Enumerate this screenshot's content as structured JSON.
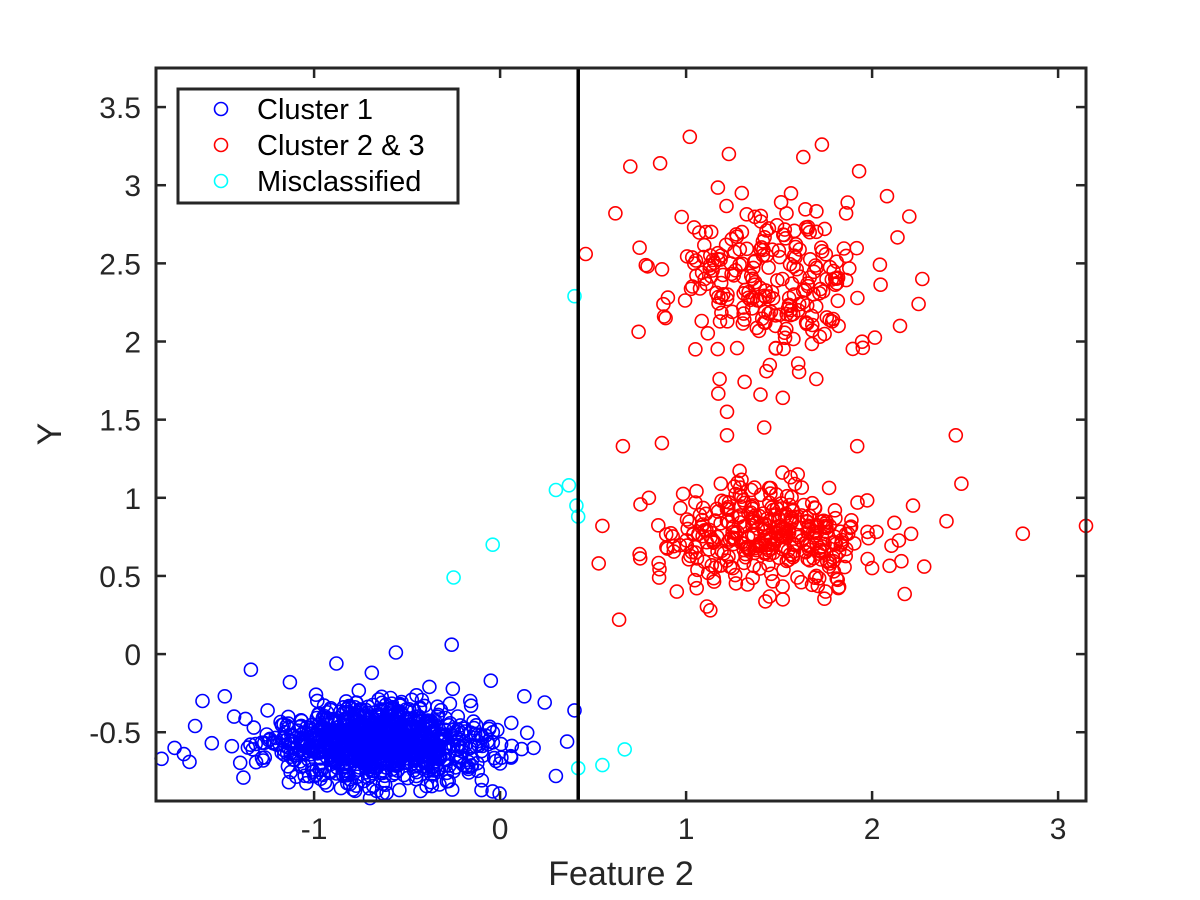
{
  "chart_data": {
    "type": "scatter",
    "title": "",
    "xlabel": "Feature 2",
    "ylabel": "Y",
    "xlim": [
      -1.85,
      3.15
    ],
    "ylim": [
      -0.94,
      3.75
    ],
    "x_ticks": [
      -1,
      0,
      1,
      2,
      3
    ],
    "y_ticks": [
      -0.5,
      0,
      0.5,
      1,
      1.5,
      2,
      2.5,
      3,
      3.5
    ],
    "x_tick_labels": [
      "-1",
      "0",
      "1",
      "2",
      "3"
    ],
    "y_tick_labels": [
      "-0.5",
      "0",
      "0.5",
      "1",
      "1.5",
      "2",
      "2.5",
      "3",
      "3.5"
    ],
    "grid": false,
    "legend_position": "top-left",
    "decision_boundary_x": 0.42,
    "series": [
      {
        "name": "Cluster 1",
        "color": "#0000ff",
        "marker": "open-circle",
        "points": [
          [
            -1.82,
            -0.67
          ],
          [
            -1.75,
            -0.6
          ],
          [
            -1.7,
            -0.64
          ],
          [
            -1.67,
            -0.69
          ],
          [
            -1.64,
            -0.46
          ],
          [
            -1.6,
            -0.3
          ],
          [
            -1.55,
            -0.57
          ],
          [
            -1.48,
            -0.27
          ],
          [
            -1.43,
            -0.4
          ],
          [
            -1.38,
            -0.79
          ],
          [
            -1.34,
            -0.1
          ],
          [
            -1.25,
            -0.36
          ],
          [
            -1.2,
            -0.58
          ],
          [
            -1.13,
            -0.18
          ],
          [
            -1.07,
            -0.72
          ],
          [
            -0.99,
            -0.26
          ],
          [
            -0.93,
            -0.84
          ],
          [
            -0.88,
            -0.06
          ],
          [
            -0.81,
            -0.49
          ],
          [
            -0.75,
            -0.62
          ],
          [
            -0.69,
            -0.12
          ],
          [
            -0.63,
            -0.83
          ],
          [
            -0.56,
            0.01
          ],
          [
            -0.5,
            -0.41
          ],
          [
            -0.45,
            -0.78
          ],
          [
            -0.38,
            -0.21
          ],
          [
            -0.31,
            -0.55
          ],
          [
            -0.26,
            0.06
          ],
          [
            -0.21,
            -0.66
          ],
          [
            -0.16,
            -0.3
          ],
          [
            -0.1,
            -0.87
          ],
          [
            -0.05,
            -0.17
          ],
          [
            0.0,
            -0.7
          ],
          [
            0.06,
            -0.44
          ],
          [
            0.13,
            -0.27
          ],
          [
            0.18,
            -0.6
          ],
          [
            0.24,
            -0.31
          ],
          [
            0.3,
            -0.78
          ],
          [
            0.36,
            -0.56
          ],
          [
            0.4,
            -0.36
          ]
        ]
      },
      {
        "name": "Cluster 2 & 3",
        "color": "#ff0000",
        "marker": "open-circle",
        "points": [
          [
            0.46,
            2.56
          ],
          [
            0.62,
            2.82
          ],
          [
            0.7,
            3.12
          ],
          [
            0.86,
            3.14
          ],
          [
            1.02,
            3.31
          ],
          [
            1.13,
            2.55
          ],
          [
            1.23,
            3.2
          ],
          [
            1.35,
            2.42
          ],
          [
            1.48,
            2.1
          ],
          [
            1.63,
            3.18
          ],
          [
            1.73,
            3.26
          ],
          [
            1.86,
            2.82
          ],
          [
            1.93,
            3.09
          ],
          [
            2.08,
            2.93
          ],
          [
            2.2,
            2.8
          ],
          [
            2.25,
            2.24
          ],
          [
            2.27,
            2.4
          ],
          [
            0.75,
            2.6
          ],
          [
            0.89,
            2.15
          ],
          [
            1.05,
            1.95
          ],
          [
            1.18,
            1.76
          ],
          [
            1.3,
            2.7
          ],
          [
            1.45,
            1.85
          ],
          [
            1.58,
            2.3
          ],
          [
            1.7,
            1.76
          ],
          [
            1.82,
            2.1
          ],
          [
            1.95,
            1.96
          ],
          [
            2.15,
            2.1
          ],
          [
            1.1,
            2.4
          ],
          [
            1.4,
            1.66
          ],
          [
            1.52,
            1.64
          ],
          [
            1.22,
            1.55
          ],
          [
            0.53,
            0.58
          ],
          [
            0.55,
            0.82
          ],
          [
            0.64,
            0.22
          ],
          [
            0.66,
            1.33
          ],
          [
            0.75,
            0.64
          ],
          [
            0.87,
            1.35
          ],
          [
            0.95,
            0.4
          ],
          [
            1.05,
            0.97
          ],
          [
            1.13,
            0.28
          ],
          [
            1.22,
            1.4
          ],
          [
            1.32,
            0.62
          ],
          [
            1.42,
            1.45
          ],
          [
            1.52,
            0.35
          ],
          [
            1.6,
            1.15
          ],
          [
            1.7,
            0.5
          ],
          [
            1.8,
            0.92
          ],
          [
            1.92,
            1.33
          ],
          [
            2.0,
            0.55
          ],
          [
            2.12,
            0.84
          ],
          [
            2.22,
            0.95
          ],
          [
            2.28,
            0.56
          ],
          [
            2.4,
            0.85
          ],
          [
            2.45,
            1.4
          ],
          [
            2.48,
            1.09
          ],
          [
            2.81,
            0.77
          ],
          [
            3.15,
            0.82
          ],
          [
            1.25,
            0.78
          ],
          [
            1.45,
            0.7
          ],
          [
            1.65,
            0.85
          ],
          [
            0.8,
            1.0
          ],
          [
            1.35,
            1.05
          ],
          [
            1.75,
            0.4
          ]
        ]
      },
      {
        "name": "Misclassified",
        "color": "#00ffff",
        "marker": "open-circle",
        "points": [
          [
            -0.25,
            0.49
          ],
          [
            -0.04,
            0.7
          ],
          [
            0.3,
            1.05
          ],
          [
            0.37,
            1.08
          ],
          [
            0.4,
            2.29
          ],
          [
            0.41,
            0.95
          ],
          [
            0.42,
            0.88
          ],
          [
            0.42,
            -0.73
          ],
          [
            0.55,
            -0.71
          ],
          [
            0.67,
            -0.61
          ]
        ]
      }
    ]
  }
}
